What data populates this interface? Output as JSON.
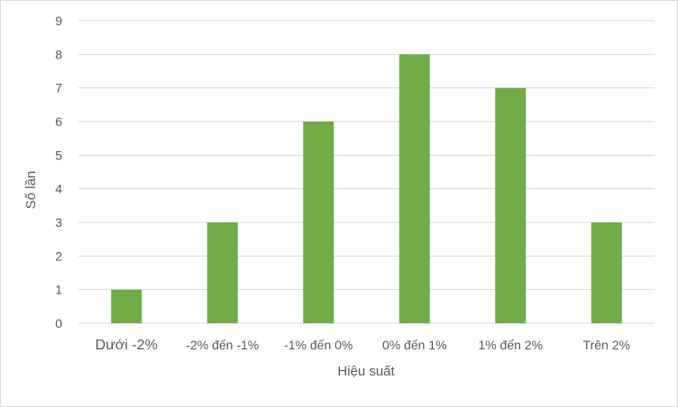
{
  "chart_data": {
    "type": "bar",
    "title": "",
    "xlabel": "Hiệu suất",
    "ylabel": "Số lần",
    "categories": [
      "Dưới -2%",
      "-2% đến -1%",
      "-1% đến 0%",
      "0% đến 1%",
      "1% đến 2%",
      "Trên 2%"
    ],
    "values": [
      1,
      3,
      6,
      8,
      7,
      3
    ],
    "ylim": [
      0,
      9
    ],
    "yticks": [
      0,
      1,
      2,
      3,
      4,
      5,
      6,
      7,
      8,
      9
    ],
    "grid": true,
    "legend": "none",
    "colors": {
      "bar": "#70ad47",
      "grid": "#d9d9d9",
      "text": "#595959"
    }
  }
}
